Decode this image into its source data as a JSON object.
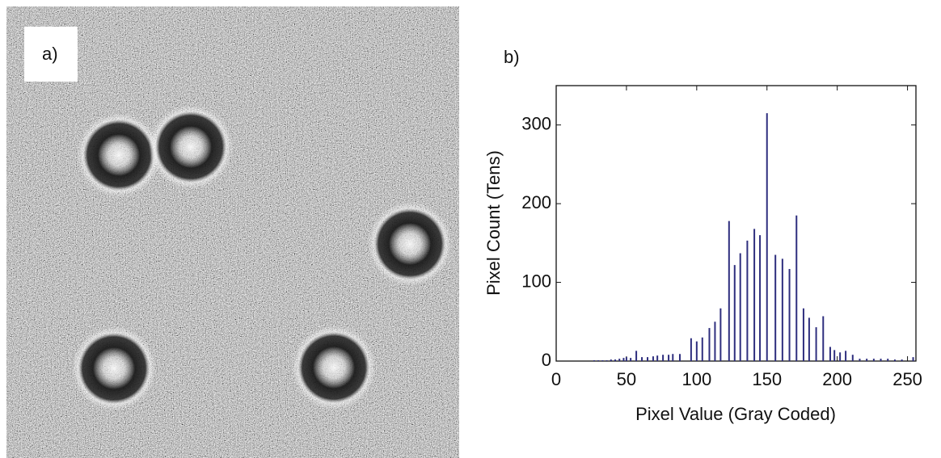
{
  "image_panel": {
    "panel_label": "a)"
  },
  "chart_data": {
    "type": "stem",
    "panel_label": "b)",
    "xlabel": "Pixel Value (Gray Coded)",
    "ylabel": "Pixel Count (Tens)",
    "x": [
      27,
      30,
      33,
      36,
      39,
      42,
      45,
      48,
      50,
      53,
      57,
      61,
      65,
      69,
      72,
      76,
      80,
      83,
      88,
      96,
      100,
      104,
      109,
      113,
      117,
      123,
      127,
      131,
      136,
      141,
      145,
      150,
      156,
      161,
      166,
      171,
      176,
      180,
      185,
      190,
      195,
      198,
      202,
      206,
      211,
      216,
      221,
      226,
      231,
      236,
      241,
      246,
      254
    ],
    "values": [
      1,
      1,
      1,
      1,
      2,
      2,
      3,
      4,
      5,
      4,
      13,
      5,
      5,
      6,
      7,
      8,
      8,
      9,
      9,
      29,
      25,
      30,
      42,
      50,
      67,
      178,
      122,
      137,
      153,
      168,
      160,
      315,
      135,
      130,
      117,
      185,
      67,
      55,
      43,
      57,
      18,
      14,
      11,
      13,
      8,
      3,
      3,
      3,
      3,
      3,
      2,
      2,
      5
    ],
    "color": "#2e2e7e",
    "xlim": [
      0,
      256
    ],
    "ylim": [
      0,
      350
    ],
    "xticks": [
      0,
      50,
      100,
      150,
      200,
      250
    ],
    "yticks": [
      0,
      100,
      200,
      300
    ]
  }
}
